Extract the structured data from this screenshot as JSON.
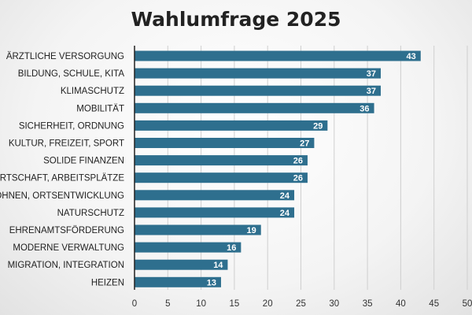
{
  "chart_data": {
    "type": "bar",
    "orientation": "horizontal",
    "title": "Wahlumfrage 2025",
    "xlabel": "",
    "ylabel": "",
    "categories": [
      "ÄRZTLICHE VERSORGUNG",
      "BILDUNG, SCHULE, KITA",
      "KLIMASCHUTZ",
      "MOBILITÄT",
      "SICHERHEIT, ORDNUNG",
      "KULTUR, FREIZEIT, SPORT",
      "SOLIDE FINANZEN",
      "WIRTSCHAFT, ARBEITSPLÄTZE",
      "WOHNEN, ORTSENTWICKLUNG",
      "NATURSCHUTZ",
      "EHRENAMTSFÖRDERUNG",
      "MODERNE VERWALTUNG",
      "MIGRATION, INTEGRATION",
      "HEIZEN"
    ],
    "values": [
      43,
      37,
      37,
      36,
      29,
      27,
      26,
      26,
      24,
      24,
      19,
      16,
      14,
      13
    ],
    "xlim": [
      0,
      50
    ],
    "xticks": [
      "0",
      "5",
      "10",
      "15",
      "20",
      "25",
      "30",
      "35",
      "40",
      "45",
      "50"
    ],
    "grid": true,
    "data_labels": true,
    "legend": "none",
    "bar_color": "#2e6f8e",
    "grid_color": "#cfcfcf",
    "axis_color": "#222222"
  }
}
